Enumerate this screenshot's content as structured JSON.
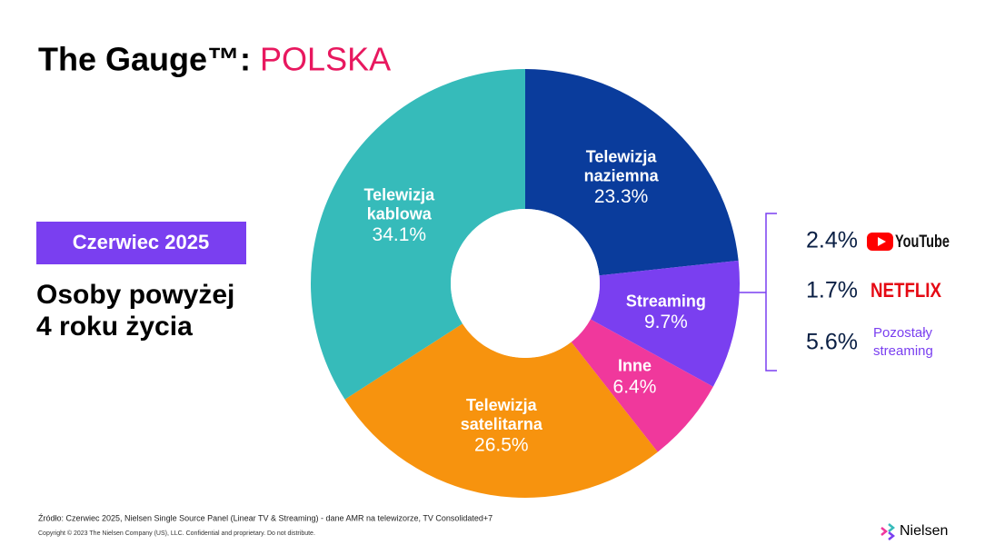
{
  "chart_data": {
    "type": "donut",
    "title": "The Gauge™:",
    "title_highlight": "POLSKA",
    "badge": "Czerwiec 2025",
    "subtitle_lines": [
      "Osoby powyżej",
      "4 roku życia"
    ],
    "categories": [
      "Telewizja naziemna",
      "Streaming",
      "Inne",
      "Telewizja satelitarna",
      "Telewizja kablowa"
    ],
    "values": [
      23.3,
      9.7,
      6.4,
      26.5,
      34.1
    ],
    "value_labels": [
      "23.3%",
      "9.7%",
      "6.4%",
      "26.5%",
      "34.1%"
    ],
    "colors": [
      "#0a3c9c",
      "#7a3ff0",
      "#f0389c",
      "#f7930e",
      "#36bbba"
    ],
    "breakdown": {
      "names": [
        "YouTube",
        "NETFLIX",
        "Pozostały streaming"
      ],
      "values": [
        2.4,
        1.7,
        5.6
      ],
      "value_labels": [
        "2.4%",
        "1.7%",
        "5.6%"
      ]
    },
    "source": "Źródło: Czerwiec  2025, Nielsen Single Source Panel (Linear TV & Streaming) - dane AMR na telewizorze, TV Consolidated+7",
    "copyright": "Copyright © 2023 The Nielsen Company (US), LLC. Confidential and proprietary. Do not distribute.",
    "brand": "Nielsen"
  }
}
